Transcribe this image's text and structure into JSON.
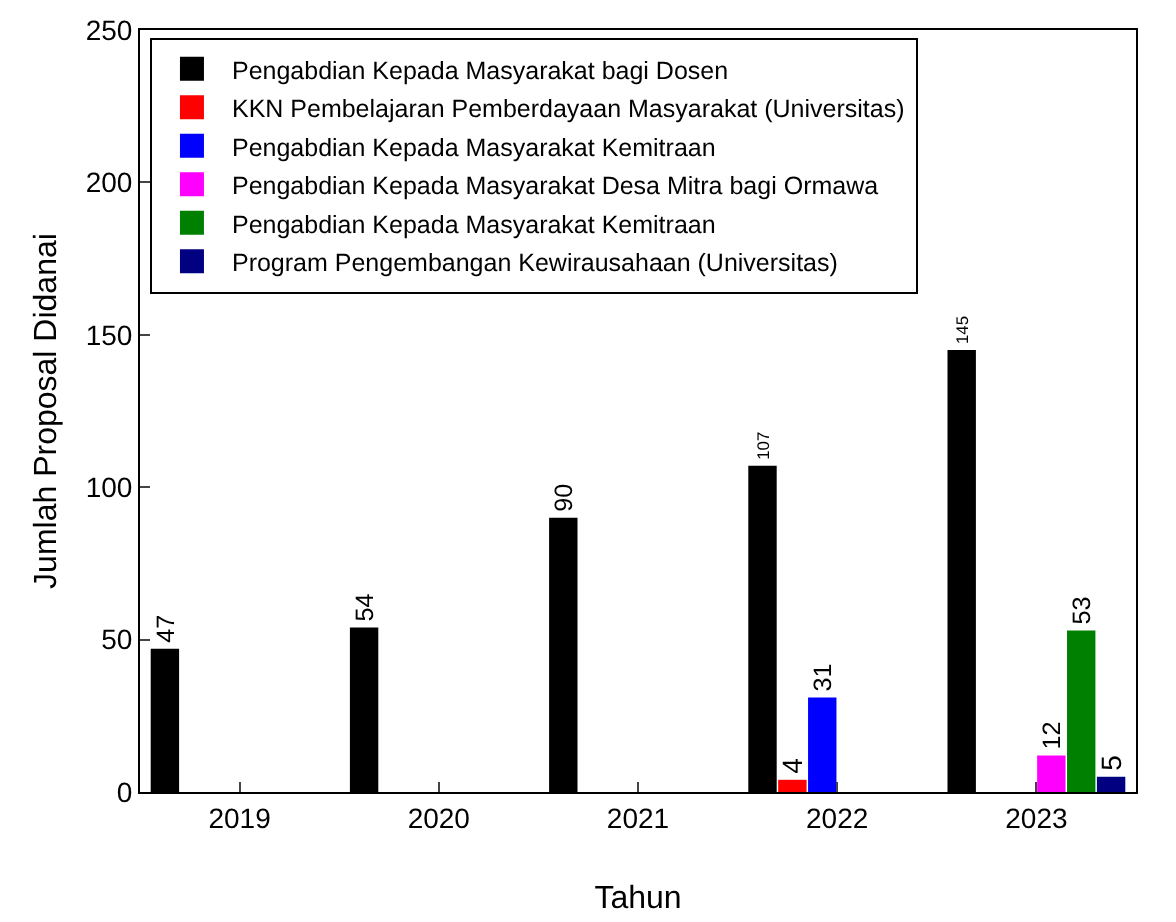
{
  "chart_data": {
    "type": "bar",
    "xlabel": "Tahun",
    "ylabel": "Jumlah Proposal Didanai",
    "categories": [
      "2019",
      "2020",
      "2021",
      "2022",
      "2023"
    ],
    "series": [
      {
        "name": "Pengabdian Kepada Masyarakat bagi Dosen",
        "color": "#000000",
        "values": [
          47,
          54,
          90,
          107,
          145
        ]
      },
      {
        "name": "KKN Pembelajaran Pemberdayaan Masyarakat (Universitas)",
        "color": "#ff0000",
        "values": [
          null,
          null,
          null,
          4,
          null
        ]
      },
      {
        "name": "Pengabdian Kepada Masyarakat Kemitraan",
        "color": "#0000ff",
        "values": [
          null,
          null,
          null,
          31,
          null
        ]
      },
      {
        "name": "Pengabdian Kepada Masyarakat Desa Mitra bagi Ormawa",
        "color": "#ff00ff",
        "values": [
          null,
          null,
          null,
          null,
          12
        ]
      },
      {
        "name": "Pengabdian Kepada Masyarakat Kemitraan",
        "color": "#008000",
        "values": [
          null,
          null,
          null,
          null,
          53
        ]
      },
      {
        "name": "Program Pengembangan Kewirausahaan (Universitas)",
        "color": "#000080",
        "values": [
          null,
          null,
          null,
          null,
          5
        ]
      }
    ],
    "ylim": [
      0,
      250
    ],
    "yticks": [
      0,
      50,
      100,
      150,
      200,
      250
    ],
    "grid": false,
    "legend": "top left",
    "data_labels": true
  }
}
